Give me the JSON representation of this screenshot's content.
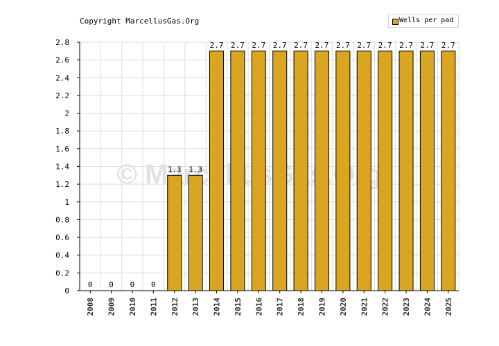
{
  "copyright": "Copyright MarcellusGas.Org",
  "watermark": "© MarcellusGas.Org",
  "colors": {
    "bar": "#DAA520",
    "bar_stroke": "#000000",
    "grid": "#dddddd",
    "watermark": "#e2e2e2"
  },
  "chart_data": {
    "type": "bar",
    "title": "",
    "xlabel": "",
    "ylabel": "",
    "categories": [
      "2008",
      "2009",
      "2010",
      "2011",
      "2012",
      "2013",
      "2014",
      "2015",
      "2016",
      "2017",
      "2018",
      "2019",
      "2020",
      "2021",
      "2022",
      "2023",
      "2024",
      "2025"
    ],
    "series": [
      {
        "name": "Wells per pad",
        "values": [
          0,
          0,
          0,
          0,
          1.3,
          1.3,
          2.7,
          2.7,
          2.7,
          2.7,
          2.7,
          2.7,
          2.7,
          2.7,
          2.7,
          2.7,
          2.7,
          2.7
        ]
      }
    ],
    "ylim": [
      0,
      2.8
    ],
    "yticks": [
      "0",
      "0.2",
      "0.4",
      "0.6",
      "0.8",
      "1",
      "1.2",
      "1.4",
      "1.6",
      "1.8",
      "2",
      "2.2",
      "2.4",
      "2.6",
      "2.8"
    ],
    "grid": true,
    "legend": "top-right"
  }
}
